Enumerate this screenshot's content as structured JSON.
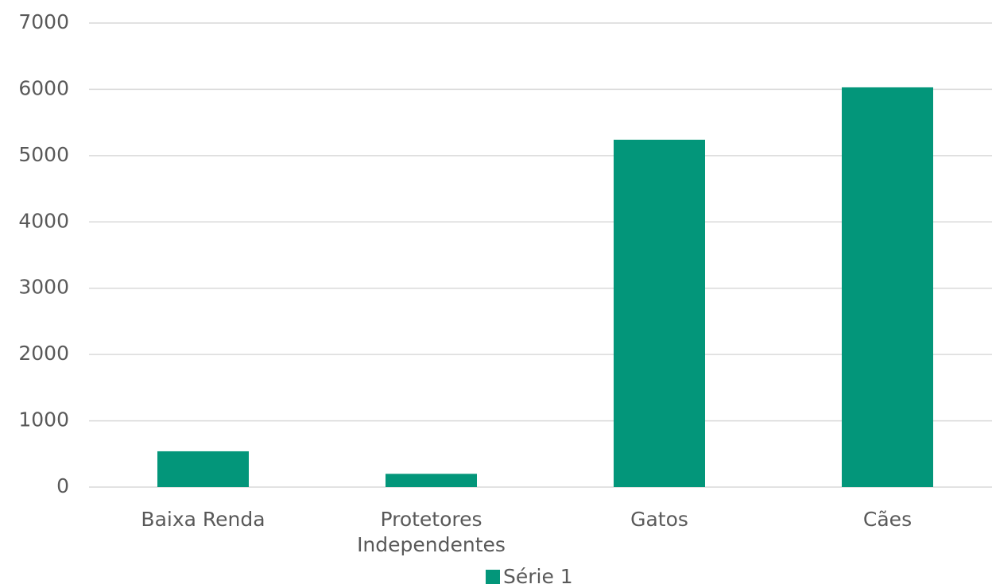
{
  "chart_data": {
    "type": "bar",
    "categories": [
      "Baixa Renda",
      "Protetores Independentes",
      "Gatos",
      "Cães"
    ],
    "series": [
      {
        "name": "Série 1",
        "color": "#03967a",
        "values": [
          540,
          200,
          5240,
          6030
        ]
      }
    ],
    "ylim": [
      0,
      7000
    ],
    "yticks": [
      0,
      1000,
      2000,
      3000,
      4000,
      5000,
      6000,
      7000
    ],
    "grid": true
  }
}
